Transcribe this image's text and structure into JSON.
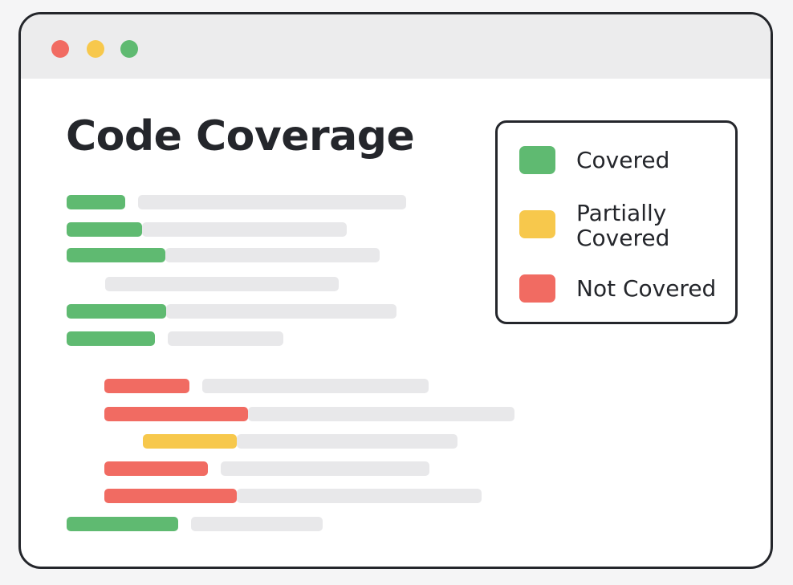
{
  "window": {
    "controls": [
      {
        "name": "close",
        "color": "#f16b62"
      },
      {
        "name": "minimize",
        "color": "#f7c84c"
      },
      {
        "name": "maximize",
        "color": "#5fba71"
      }
    ]
  },
  "page": {
    "title": "Code Coverage"
  },
  "colors": {
    "covered": "#5fba71",
    "partial": "#f7c84c",
    "not_covered": "#f16b62",
    "code": "#e8e8ea"
  },
  "legend": {
    "items": [
      {
        "status": "covered",
        "label": "Covered"
      },
      {
        "status": "partial",
        "label": "Partially Covered"
      },
      {
        "status": "not_covered",
        "label": "Not Covered"
      }
    ]
  },
  "code_lines": [
    {
      "indent": 0,
      "status": "covered"
    },
    {
      "indent": 0,
      "status": "covered"
    },
    {
      "indent": 0,
      "status": "covered"
    },
    {
      "indent": 1,
      "status": "none"
    },
    {
      "indent": 0,
      "status": "covered"
    },
    {
      "indent": 0,
      "status": "covered"
    },
    {
      "indent": 1,
      "status": "not_covered"
    },
    {
      "indent": 1,
      "status": "not_covered"
    },
    {
      "indent": 2,
      "status": "partial"
    },
    {
      "indent": 1,
      "status": "not_covered"
    },
    {
      "indent": 1,
      "status": "not_covered"
    },
    {
      "indent": 0,
      "status": "covered"
    }
  ]
}
